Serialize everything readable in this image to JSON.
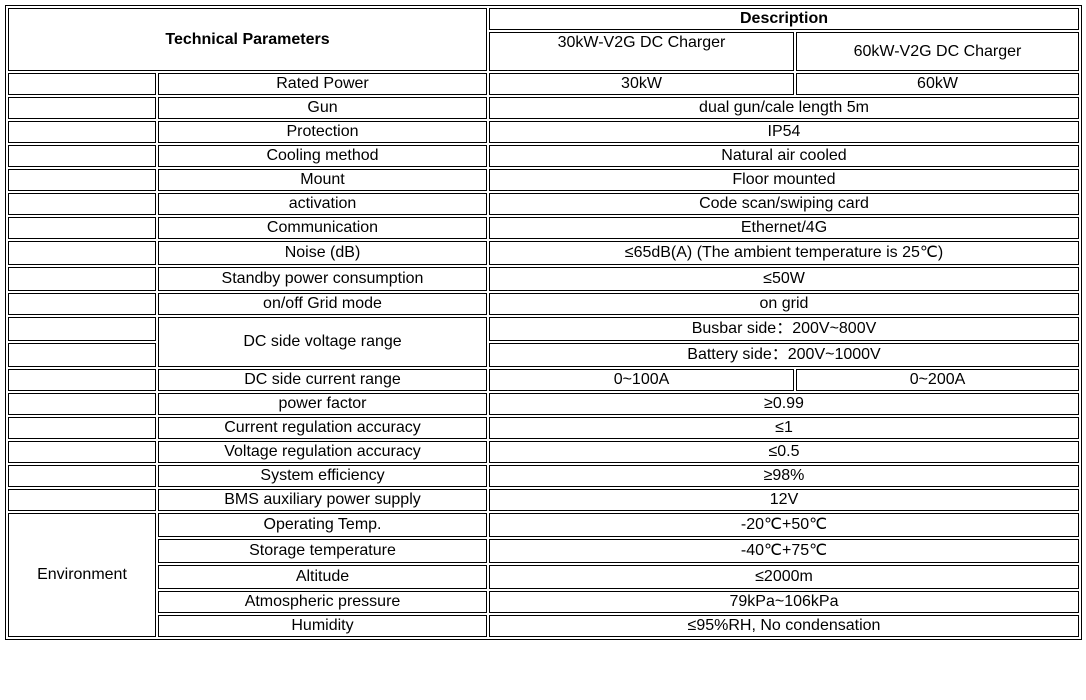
{
  "header": {
    "technical_parameters": "Technical Parameters",
    "description": "Description",
    "model_30kw": "30kW-V2G DC Charger",
    "model_60kw": "60kW-V2G DC Charger"
  },
  "rows": [
    {
      "param": "Rated Power",
      "v30": "30kW",
      "v60": "60kW"
    },
    {
      "param": "Gun",
      "value": "dual gun/cale length 5m"
    },
    {
      "param": "Protection",
      "value": "IP54"
    },
    {
      "param": "Cooling method",
      "value": "Natural air cooled"
    },
    {
      "param": "Mount",
      "value": "Floor mounted"
    },
    {
      "param": "activation",
      "value": "Code scan/swiping card"
    },
    {
      "param": "Communication",
      "value": "Ethernet/4G"
    },
    {
      "param": "Noise (dB)",
      "value": "≤65dB(A) (The ambient temperature is 25℃)"
    },
    {
      "param": "Standby power consumption",
      "value": "≤50W"
    },
    {
      "param": "on/off Grid mode",
      "value": "on grid"
    },
    {
      "param": "DC side voltage range",
      "value": "Busbar side：200V~800V",
      "value2": "Battery side：200V~1000V"
    },
    {
      "param": "DC side current range",
      "v30": "0~100A",
      "v60": "0~200A"
    },
    {
      "param": "power factor",
      "value": "≥0.99"
    },
    {
      "param": "Current regulation accuracy",
      "value": "≤1"
    },
    {
      "param": "Voltage regulation accuracy",
      "value": "≤0.5"
    },
    {
      "param": "System efficiency",
      "value": "≥98%"
    },
    {
      "param": "BMS auxiliary power supply",
      "value": "12V"
    }
  ],
  "environment": {
    "label": "Environment",
    "rows": [
      {
        "param": "Operating Temp.",
        "value": "-20℃+50℃"
      },
      {
        "param": "Storage temperature",
        "value": "-40℃+75℃"
      },
      {
        "param": "Altitude",
        "value": "≤2000m"
      },
      {
        "param": "Atmospheric pressure",
        "value": "79kPa~106kPa"
      },
      {
        "param": "Humidity",
        "value": "≤95%RH, No condensation"
      }
    ]
  }
}
